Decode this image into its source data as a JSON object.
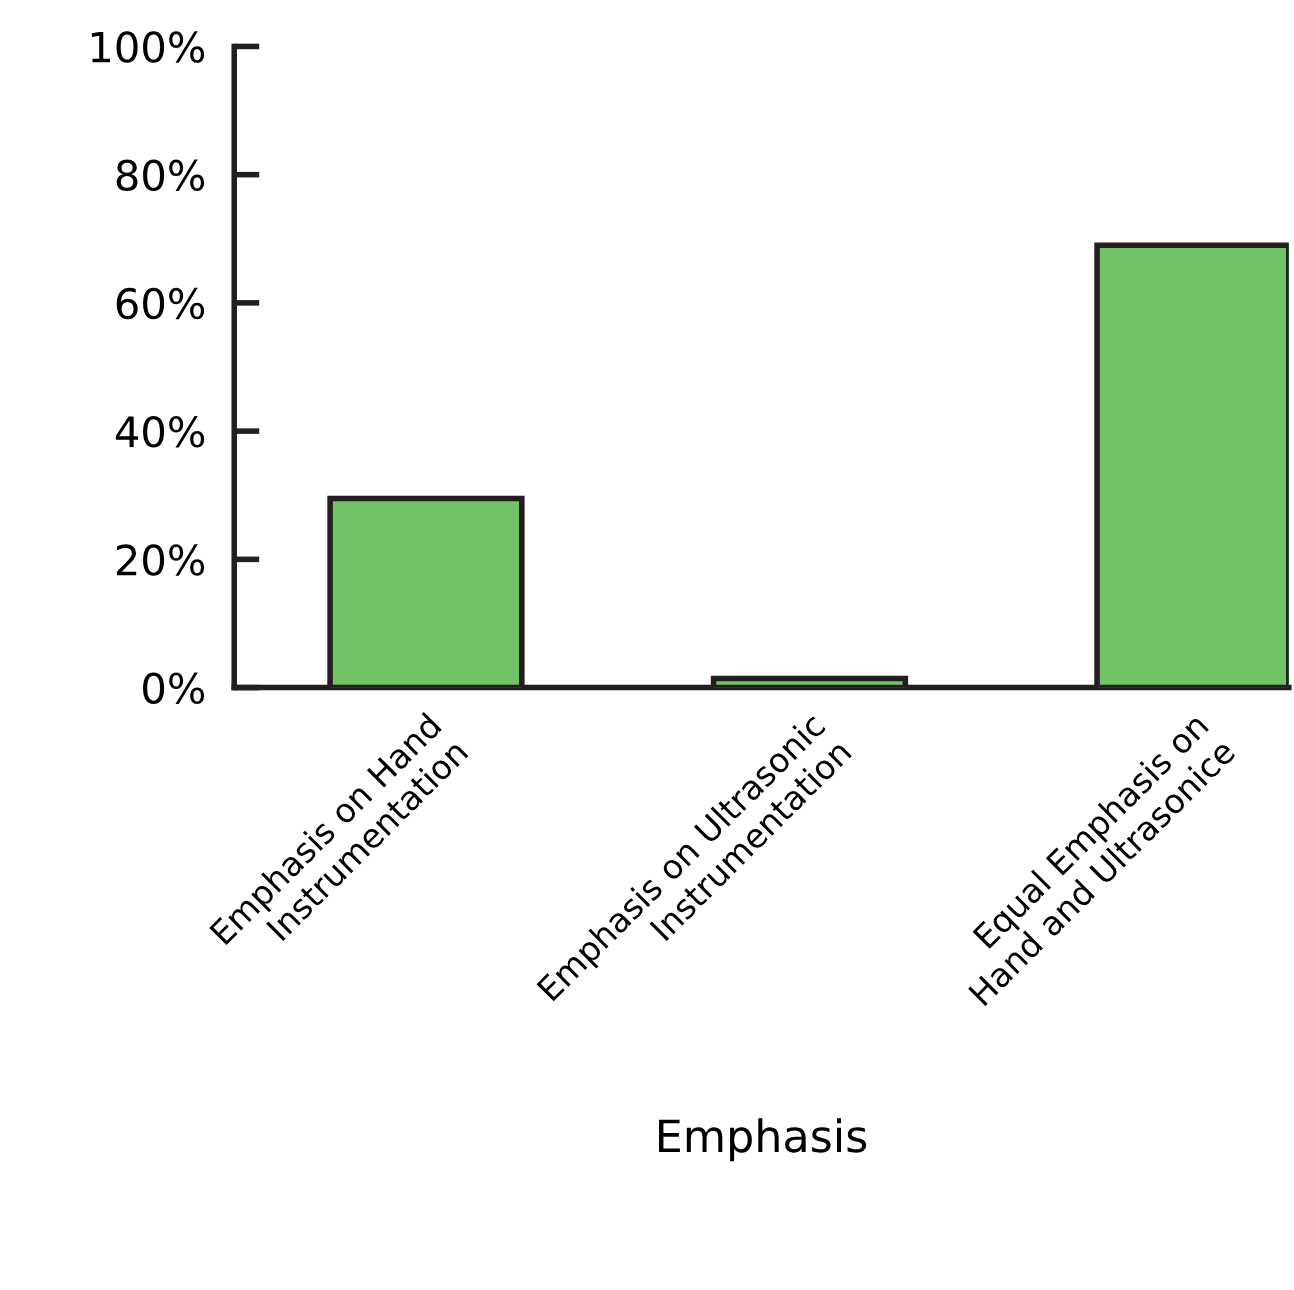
{
  "chart_data": {
    "type": "bar",
    "xlabel": "Emphasis",
    "categories": [
      "Emphasis on Hand\nInstrumentation",
      "Emphasis on Ultrasonic\nInstrumentation",
      "Equal Emphasis on\nHand and Ultrasonice"
    ],
    "values": [
      29.5,
      1.4,
      69
    ],
    "color": "#72c267",
    "ylim": [
      0,
      100
    ],
    "yticks": [
      {
        "value": 0,
        "label": "0%"
      },
      {
        "value": 20,
        "label": "20%"
      },
      {
        "value": 40,
        "label": "40%"
      },
      {
        "value": 60,
        "label": "60%"
      },
      {
        "value": 80,
        "label": "80%"
      },
      {
        "value": 100,
        "label": "100%"
      }
    ],
    "grid": false
  }
}
